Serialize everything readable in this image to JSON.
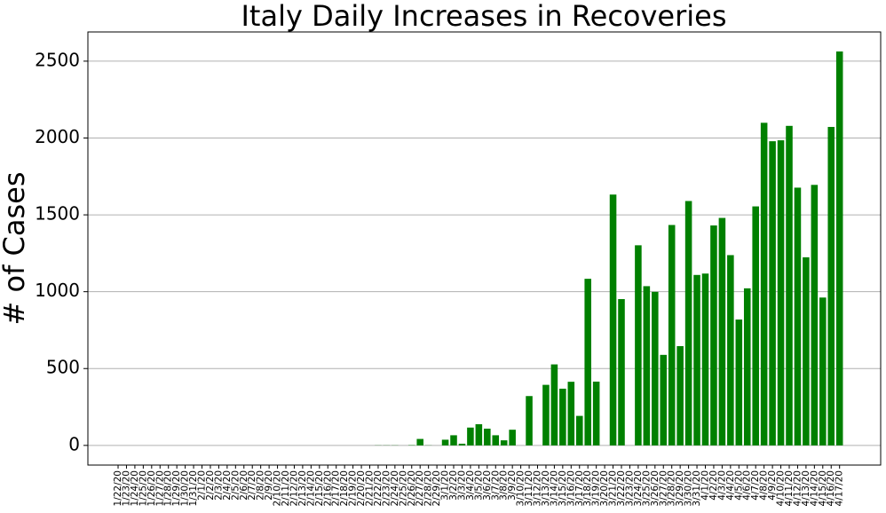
{
  "chart_data": {
    "type": "bar",
    "title": "Italy Daily Increases in Recoveries",
    "ylabel": "# of Cases",
    "categories": [
      "1/22/20",
      "1/23/20",
      "1/24/20",
      "1/25/20",
      "1/26/20",
      "1/27/20",
      "1/28/20",
      "1/29/20",
      "1/30/20",
      "1/31/20",
      "2/1/20",
      "2/2/20",
      "2/3/20",
      "2/4/20",
      "2/5/20",
      "2/6/20",
      "2/7/20",
      "2/8/20",
      "2/9/20",
      "2/10/20",
      "2/11/20",
      "2/12/20",
      "2/13/20",
      "2/14/20",
      "2/15/20",
      "2/16/20",
      "2/17/20",
      "2/18/20",
      "2/19/20",
      "2/20/20",
      "2/21/20",
      "2/22/20",
      "2/23/20",
      "2/24/20",
      "2/25/20",
      "2/26/20",
      "2/27/20",
      "2/28/20",
      "2/29/20",
      "3/1/20",
      "3/2/20",
      "3/3/20",
      "3/4/20",
      "3/5/20",
      "3/6/20",
      "3/7/20",
      "3/8/20",
      "3/9/20",
      "3/10/20",
      "3/11/20",
      "3/12/20",
      "3/13/20",
      "3/14/20",
      "3/15/20",
      "3/16/20",
      "3/17/20",
      "3/18/20",
      "3/19/20",
      "3/20/20",
      "3/21/20",
      "3/22/20",
      "3/23/20",
      "3/24/20",
      "3/25/20",
      "3/26/20",
      "3/27/20",
      "3/28/20",
      "3/29/20",
      "3/30/20",
      "3/31/20",
      "4/1/20",
      "4/2/20",
      "4/3/20",
      "4/4/20",
      "4/5/20",
      "4/6/20",
      "4/7/20",
      "4/8/20",
      "4/9/20",
      "4/10/20",
      "4/11/20",
      "4/12/20",
      "4/13/20",
      "4/14/20",
      "4/15/20",
      "4/16/20",
      "4/17/20"
    ],
    "values": [
      0,
      0,
      0,
      0,
      0,
      0,
      0,
      0,
      0,
      0,
      0,
      0,
      0,
      0,
      0,
      0,
      0,
      0,
      0,
      0,
      0,
      0,
      0,
      0,
      0,
      0,
      0,
      0,
      0,
      0,
      0,
      1,
      1,
      -1,
      0,
      2,
      42,
      1,
      0,
      37,
      66,
      11,
      116,
      138,
      109,
      66,
      33,
      102,
      0,
      321,
      0,
      394,
      527,
      369,
      414,
      192,
      1084,
      415,
      0,
      1632,
      952,
      0,
      1302,
      1036,
      999,
      589,
      1434,
      646,
      1590,
      1109,
      1118,
      1431,
      1480,
      1238,
      819,
      1022,
      1555,
      2099,
      1979,
      1985,
      2079,
      1677,
      1224,
      1695,
      962,
      2072,
      2563
    ],
    "color": "#008000",
    "ylim": [
      -128,
      2690
    ],
    "yticks": [
      0,
      500,
      1000,
      1500,
      2000,
      2500
    ],
    "grid": true
  }
}
